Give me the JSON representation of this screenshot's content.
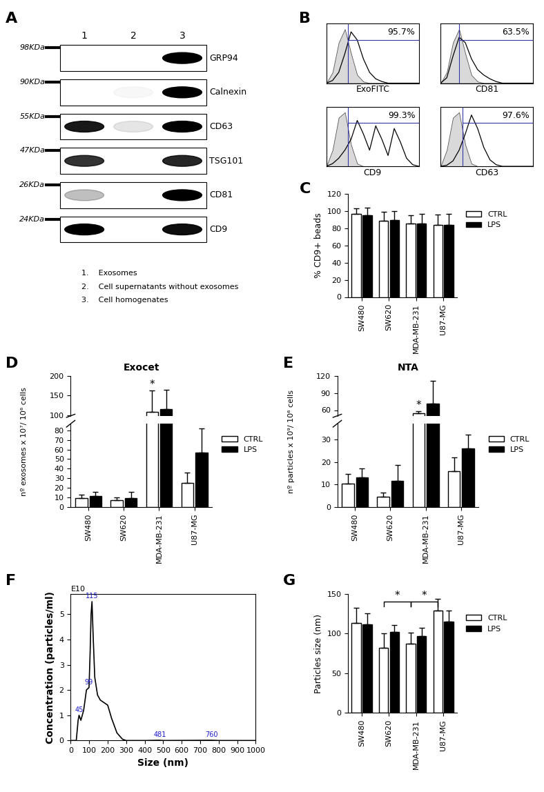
{
  "western_blot": {
    "panel": "A",
    "lanes": [
      "1",
      "2",
      "3"
    ],
    "rows": [
      {
        "label": "GRP94",
        "mw": "98KDa",
        "bands": [
          0,
          0,
          1
        ]
      },
      {
        "label": "Calnexin",
        "mw": "90KDa",
        "bands": [
          0,
          0.03,
          1
        ]
      },
      {
        "label": "CD63",
        "mw": "55KDa",
        "bands": [
          0.9,
          0.1,
          1
        ]
      },
      {
        "label": "TSG101",
        "mw": "47KDa",
        "bands": [
          0.8,
          0,
          0.85
        ]
      },
      {
        "label": "CD81",
        "mw": "26KDa",
        "bands": [
          0.25,
          0,
          1
        ]
      },
      {
        "label": "CD9",
        "mw": "24KDa",
        "bands": [
          1,
          0,
          0.95
        ]
      }
    ],
    "lane_legend": [
      "1.    Exosomes",
      "2.    Cell supernatants without exosomes",
      "3.    Cell homogenates"
    ]
  },
  "chart_data": [
    {
      "type": "area",
      "panel": "B",
      "xlabel": "ExoFITC",
      "tick_labels": false,
      "x": [
        0,
        2,
        4,
        6,
        8,
        10,
        12,
        14,
        16,
        18,
        20,
        22,
        24,
        26,
        28,
        30
      ],
      "xlim": [
        0,
        30
      ],
      "ylim": [
        0,
        1.1
      ],
      "series": [
        {
          "type": "area",
          "color": "#d9d9d9",
          "values": [
            0,
            0.2,
            0.75,
            1.0,
            0.55,
            0.15,
            0.03,
            0,
            0,
            0,
            0,
            0,
            0,
            0,
            0,
            0
          ]
        },
        {
          "type": "line",
          "color": "#000000",
          "values": [
            0,
            0.05,
            0.2,
            0.55,
            0.95,
            0.8,
            0.45,
            0.2,
            0.08,
            0.03,
            0,
            0,
            0,
            0,
            0,
            0
          ]
        }
      ],
      "gate": {
        "x": 7,
        "y": 0.8
      },
      "percent_positive": {
        "value": 95.7,
        "label": "95.7%"
      }
    },
    {
      "type": "area",
      "xlabel": "CD81",
      "tick_labels": false,
      "x": [
        0,
        2,
        4,
        6,
        8,
        10,
        12,
        14,
        16,
        18,
        20,
        22,
        24,
        26,
        28,
        30
      ],
      "xlim": [
        0,
        30
      ],
      "ylim": [
        0,
        1.1
      ],
      "series": [
        {
          "type": "area",
          "color": "#d9d9d9",
          "values": [
            0,
            0.2,
            0.75,
            1.0,
            0.55,
            0.15,
            0.03,
            0,
            0,
            0,
            0,
            0,
            0,
            0,
            0,
            0
          ]
        },
        {
          "type": "line",
          "color": "#000000",
          "values": [
            0,
            0.1,
            0.5,
            0.85,
            0.75,
            0.45,
            0.25,
            0.15,
            0.08,
            0.03,
            0,
            0,
            0,
            0,
            0,
            0
          ]
        }
      ],
      "gate": {
        "x": 6,
        "y": 0.8
      },
      "percent_positive": {
        "value": 63.5,
        "label": "63.5%"
      }
    },
    {
      "type": "area",
      "xlabel": "CD9",
      "tick_labels": false,
      "x": [
        0,
        2,
        4,
        6,
        8,
        10,
        12,
        14,
        16,
        18,
        20,
        22,
        24,
        26,
        28,
        30
      ],
      "xlim": [
        0,
        30
      ],
      "ylim": [
        0,
        1.1
      ],
      "series": [
        {
          "type": "area",
          "color": "#d9d9d9",
          "values": [
            0,
            0.3,
            0.9,
            1.0,
            0.4,
            0.05,
            0,
            0,
            0,
            0,
            0,
            0,
            0,
            0,
            0,
            0
          ]
        },
        {
          "type": "line",
          "color": "#000000",
          "values": [
            0,
            0.05,
            0.15,
            0.3,
            0.5,
            0.85,
            0.6,
            0.3,
            0.75,
            0.5,
            0.2,
            0.7,
            0.45,
            0.15,
            0.03,
            0
          ]
        }
      ],
      "gate": {
        "x": 7,
        "y": 0.8
      },
      "percent_positive": {
        "value": 99.3,
        "label": "99.3%"
      }
    },
    {
      "type": "area",
      "xlabel": "CD63",
      "tick_labels": false,
      "x": [
        0,
        2,
        4,
        6,
        8,
        10,
        12,
        14,
        16,
        18,
        20,
        22,
        24,
        26,
        28,
        30
      ],
      "xlim": [
        0,
        30
      ],
      "ylim": [
        0,
        1.1
      ],
      "series": [
        {
          "type": "area",
          "color": "#d9d9d9",
          "values": [
            0,
            0.3,
            0.9,
            1.0,
            0.4,
            0.05,
            0,
            0,
            0,
            0,
            0,
            0,
            0,
            0,
            0,
            0
          ]
        },
        {
          "type": "line",
          "color": "#000000",
          "values": [
            0,
            0.02,
            0.1,
            0.3,
            0.6,
            0.95,
            0.7,
            0.35,
            0.12,
            0.03,
            0,
            0,
            0,
            0,
            0,
            0
          ]
        }
      ],
      "gate": {
        "x": 7,
        "y": 0.8
      },
      "percent_positive": {
        "value": 97.6,
        "label": "97.6%"
      }
    },
    {
      "type": "bar",
      "panel": "C",
      "ylabel": "% CD9+ beads",
      "categories": [
        "SW480",
        "SW620",
        "MDA-MB-231",
        "U87-MG"
      ],
      "ylim": [
        0,
        120
      ],
      "yticks": [
        0,
        20,
        40,
        60,
        80,
        100,
        120
      ],
      "legend": "right",
      "series": [
        {
          "name": "CTRL",
          "color": "#ffffff",
          "values": [
            97,
            89,
            86,
            84
          ],
          "errors": [
            6,
            10,
            9,
            12
          ]
        },
        {
          "name": "LPS",
          "color": "#000000",
          "values": [
            95,
            90,
            86,
            84
          ],
          "errors": [
            9,
            10,
            11,
            13
          ]
        }
      ]
    },
    {
      "type": "bar",
      "panel": "D",
      "title": "Exocet",
      "ylabel": "nº exosomes x 10⁷/ 10⁶ cells",
      "categories": [
        "SW480",
        "SW620",
        "MDA-MB-231",
        "U87-MG"
      ],
      "ylim": [
        [
          0,
          87
        ],
        [
          98,
          200
        ]
      ],
      "yticks": [
        [
          0,
          10,
          20,
          30,
          40,
          50,
          60,
          70,
          80
        ],
        [
          100,
          150,
          200
        ]
      ],
      "legend": "right",
      "series": [
        {
          "name": "CTRL",
          "color": "#ffffff",
          "values": [
            9,
            7,
            108,
            25
          ],
          "errors": [
            4,
            3,
            55,
            11
          ]
        },
        {
          "name": "LPS",
          "color": "#000000",
          "values": [
            11,
            9,
            115,
            57
          ],
          "errors": [
            5,
            7,
            50,
            25
          ]
        }
      ],
      "significance": [
        {
          "category": "MDA-MB-231",
          "series": "CTRL",
          "label": "*"
        }
      ]
    },
    {
      "type": "bar",
      "panel": "E",
      "title": "NTA",
      "ylabel": "nº particles x 10⁹/ 10⁶ cells",
      "categories": [
        "SW480",
        "SW620",
        "MDA-MB-231",
        "U87-MG"
      ],
      "ylim": [
        [
          0,
          37
        ],
        [
          50,
          120
        ]
      ],
      "yticks": [
        [
          0,
          10,
          20,
          30
        ],
        [
          60,
          90,
          120
        ]
      ],
      "legend": "right",
      "series": [
        {
          "name": "CTRL",
          "color": "#ffffff",
          "values": [
            10.5,
            4.5,
            55,
            16
          ],
          "errors": [
            4,
            2,
            3,
            6
          ]
        },
        {
          "name": "LPS",
          "color": "#000000",
          "values": [
            13,
            11.5,
            72,
            26
          ],
          "errors": [
            4,
            7,
            40,
            6
          ]
        }
      ],
      "significance": [
        {
          "category": "MDA-MB-231",
          "series": "CTRL",
          "label": "*"
        }
      ]
    },
    {
      "type": "line",
      "panel": "F",
      "xlabel": "Size (nm)",
      "ylabel": "Concentration (particles/ml)",
      "color": "#000000",
      "x": [
        0,
        30,
        40,
        45,
        55,
        70,
        85,
        99,
        105,
        110,
        115,
        122,
        130,
        145,
        160,
        180,
        200,
        220,
        250,
        280,
        300,
        400,
        481,
        500,
        760,
        800,
        1000
      ],
      "values": [
        0,
        0,
        0.8,
        1.0,
        0.8,
        1.2,
        2.0,
        2.1,
        3.5,
        5.0,
        5.5,
        4.0,
        2.5,
        1.8,
        1.6,
        1.5,
        1.4,
        0.9,
        0.3,
        0.05,
        0,
        0,
        0.01,
        0,
        0.01,
        0,
        0
      ],
      "xlim": [
        0,
        1000
      ],
      "xticks": [
        0,
        100,
        200,
        300,
        400,
        500,
        600,
        700,
        800,
        900,
        1000
      ],
      "ylim": [
        0,
        5.8
      ],
      "yticks": [
        0,
        1,
        2,
        3,
        4,
        5
      ],
      "annotations": [
        {
          "text": "E10"
        },
        {
          "x": 45,
          "y": 1.0,
          "text": "45"
        },
        {
          "x": 99,
          "y": 2.1,
          "text": "99"
        },
        {
          "x": 115,
          "y": 5.5,
          "text": "115"
        },
        {
          "x": 481,
          "y": 0.01,
          "text": "481"
        },
        {
          "x": 760,
          "y": 0.01,
          "text": "760"
        }
      ]
    },
    {
      "type": "bar",
      "panel": "G",
      "ylabel": "Particles size (nm)",
      "categories": [
        "SW480",
        "SW620",
        "MDA-MB-231",
        "U87-MG"
      ],
      "ylim": [
        0,
        150
      ],
      "yticks": [
        0,
        50,
        100,
        150
      ],
      "legend": "right",
      "series": [
        {
          "name": "CTRL",
          "color": "#ffffff",
          "values": [
            113,
            82,
            87,
            129
          ],
          "errors": [
            20,
            18,
            14,
            15
          ]
        },
        {
          "name": "LPS",
          "color": "#000000",
          "values": [
            112,
            102,
            97,
            115
          ],
          "errors": [
            14,
            9,
            10,
            14
          ]
        }
      ],
      "brackets": [
        {
          "from": [
            "SW620",
            "CTRL"
          ],
          "to": [
            "MDA-MB-231",
            "CTRL"
          ],
          "label": "*",
          "y": 140
        },
        {
          "from": [
            "MDA-MB-231",
            "CTRL"
          ],
          "to": [
            "U87-MG",
            "CTRL"
          ],
          "label": "*",
          "y": 140
        }
      ]
    }
  ]
}
